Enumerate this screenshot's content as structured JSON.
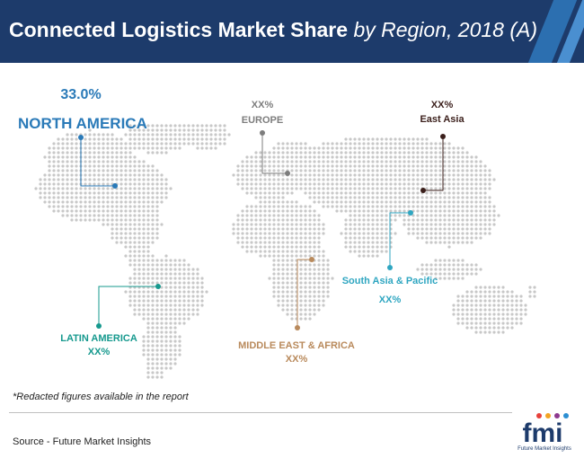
{
  "header": {
    "title_main": "Connected Logistics Market Share",
    "title_sub": "by Region, 2018 (A)"
  },
  "chart_data": {
    "type": "map",
    "title": "Connected Logistics Market Share by Region, 2018 (A)",
    "regions": [
      {
        "name": "NORTH AMERICA",
        "value": "33.0%",
        "color": "#2a7ab8"
      },
      {
        "name": "EUROPE",
        "value": "XX%",
        "color": "#7d7d7d"
      },
      {
        "name": "East Asia",
        "value": "XX%",
        "color": "#3b1f1b"
      },
      {
        "name": "South Asia & Pacific",
        "value": "XX%",
        "color": "#2fa6c1"
      },
      {
        "name": "MIDDLE EAST & AFRICA",
        "value": "XX%",
        "color": "#b98a5c"
      },
      {
        "name": "LATIN AMERICA",
        "value": "XX%",
        "color": "#16998e"
      }
    ]
  },
  "footnote": "*Redacted figures available in the report",
  "source": "Source - Future Market Insights",
  "logo": {
    "letters": "fmi",
    "text": "Future Market Insights"
  }
}
